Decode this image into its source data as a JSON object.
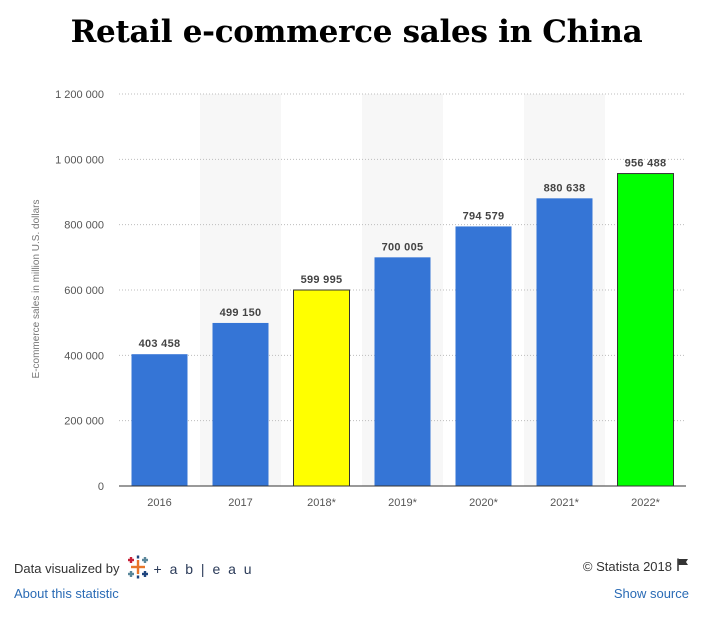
{
  "chart_data": {
    "type": "bar",
    "title": "Retail e-commerce sales in China",
    "ylabel": "E-commerce sales in million U.S. dollars",
    "xlabel": "",
    "categories": [
      "2016",
      "2017",
      "2018*",
      "2019*",
      "2020*",
      "2021*",
      "2022*"
    ],
    "values": [
      403458,
      499150,
      599995,
      700005,
      794579,
      880638,
      956488
    ],
    "value_labels": [
      "403 458",
      "499 150",
      "599 995",
      "700 005",
      "794 579",
      "880 638",
      "956 488"
    ],
    "bar_colors": [
      "#3575d6",
      "#3575d6",
      "#ffff00",
      "#3575d6",
      "#3575d6",
      "#3575d6",
      "#00ff00"
    ],
    "yticks": [
      0,
      200000,
      400000,
      600000,
      800000,
      1000000,
      1200000
    ],
    "ytick_labels": [
      "0",
      "200 000",
      "400 000",
      "600 000",
      "800 000",
      "1 000 000",
      "1 200 000"
    ],
    "ylim": [
      0,
      1200000
    ],
    "grid": true
  },
  "footer": {
    "visualized_by": "Data visualized by",
    "tableau": "+ a b | e a u",
    "copyright": "© Statista 2018",
    "about_link": "About this statistic",
    "source_link": "Show source"
  }
}
